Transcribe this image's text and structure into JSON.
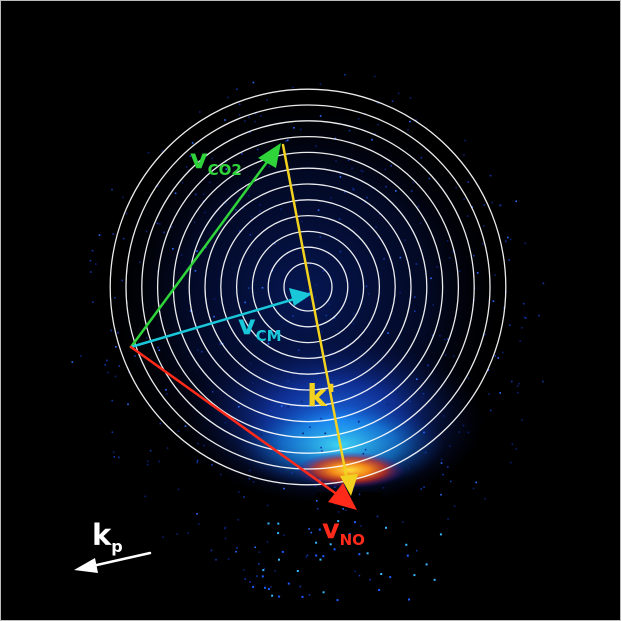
{
  "labels": {
    "v_co2": {
      "main": "v",
      "sub": "CO2",
      "color": "#2fd43a"
    },
    "v_cm": {
      "main": "v",
      "sub": "CM",
      "color": "#19c7d9"
    },
    "k_prime": {
      "main": "k'",
      "color": "#f2d21e"
    },
    "v_no": {
      "main": "v",
      "sub": "NO",
      "color": "#ff2a1a"
    },
    "k_p": {
      "main": "k",
      "sub": "p",
      "color": "#ffffff"
    }
  },
  "colors": {
    "background": "#000000",
    "rings": "#ffffff",
    "v_co2_arrow": "#2fd43a",
    "v_cm_arrow": "#19c7d9",
    "k_prime_arrow": "#f2d21e",
    "v_no_arrow": "#ff2a1a",
    "k_p_arrow": "#ffffff"
  },
  "icons": {
    "rings": "concentric-circles-icon",
    "arrow": "arrow-icon"
  }
}
